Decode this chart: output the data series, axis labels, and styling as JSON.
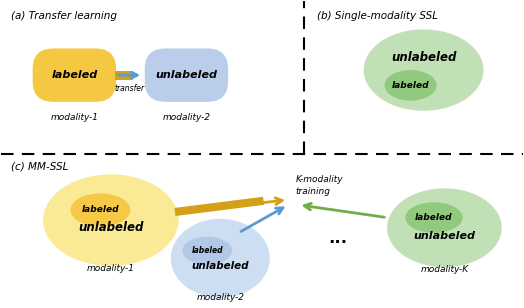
{
  "fig_width": 5.24,
  "fig_height": 3.08,
  "dpi": 100,
  "bg_color": "#ffffff",
  "section_a_title": "(a) Transfer learning",
  "section_b_title": "(b) Single-modality SSL",
  "section_c_title": "(c) MM-SSL",
  "yellow_color": "#F5C842",
  "yellow_light": "#FBE88A",
  "blue_color": "#AEC6E8",
  "blue_light": "#C5D8F0",
  "green_color": "#8CC77A",
  "green_light": "#B8DBA8",
  "label_bold_italic": true
}
